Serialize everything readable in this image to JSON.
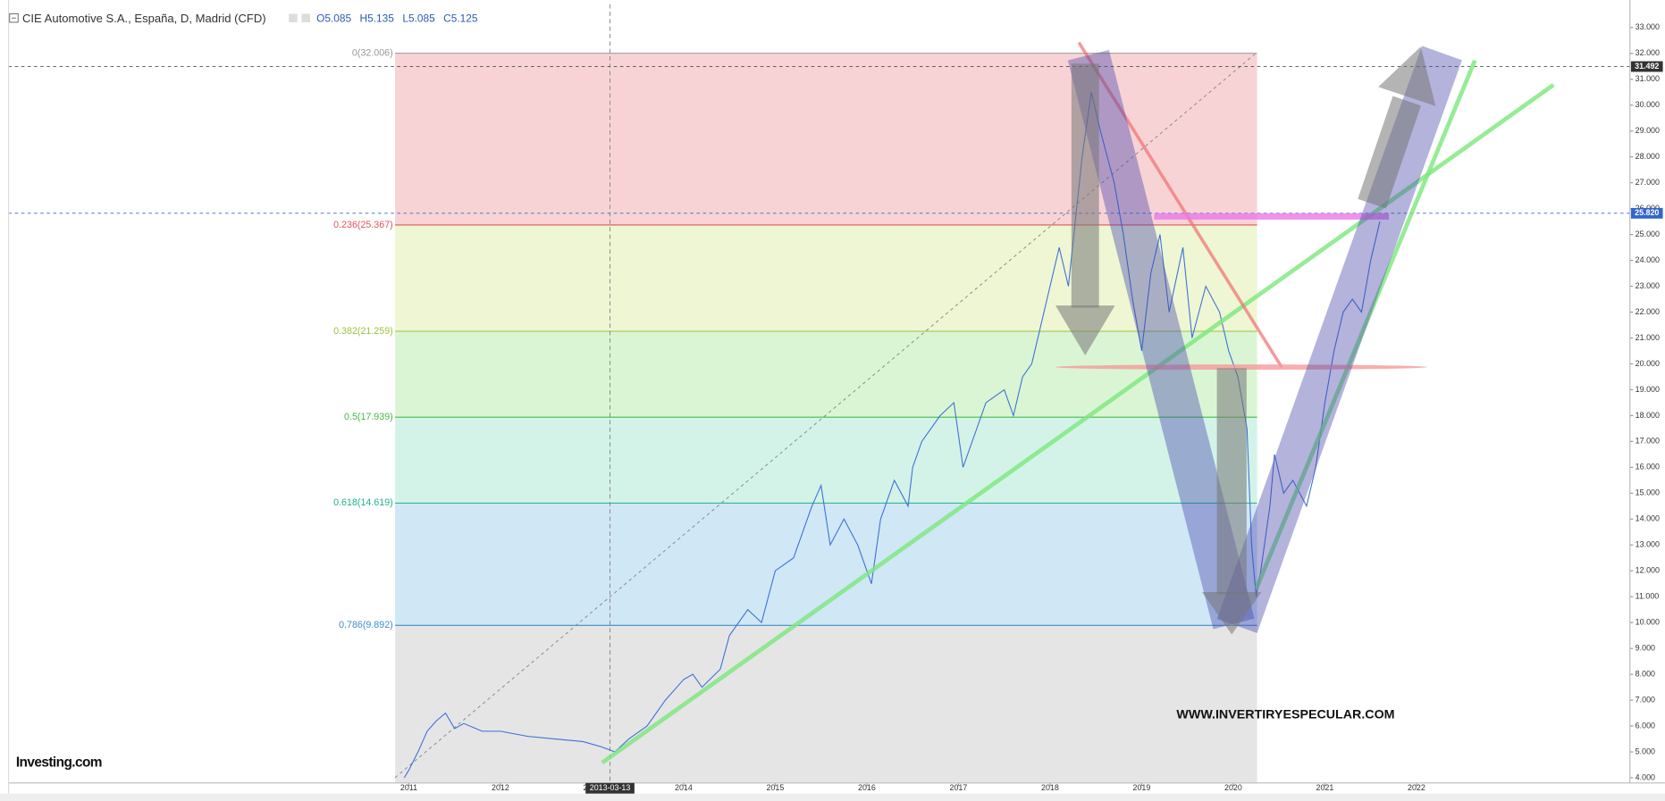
{
  "chart_data": {
    "type": "line",
    "title": "CIE Automotive S.A., España, D, Madrid (CFD)",
    "ohlc": [
      {
        "value": 5.085,
        "label": "O5.085"
      },
      {
        "value": 5.135,
        "label": "H5.135"
      },
      {
        "value": 5.085,
        "label": "L5.085"
      },
      {
        "value": 5.125,
        "label": "C5.125"
      }
    ],
    "x": [
      2010.95,
      2011.0,
      2011.1,
      2011.2,
      2011.3,
      2011.4,
      2011.5,
      2011.6,
      2011.8,
      2012.0,
      2012.3,
      2012.6,
      2012.9,
      2013.1,
      2013.25,
      2013.4,
      2013.6,
      2013.8,
      2014.0,
      2014.1,
      2014.2,
      2014.4,
      2014.5,
      2014.7,
      2014.85,
      2015.0,
      2015.2,
      2015.4,
      2015.5,
      2015.6,
      2015.75,
      2015.9,
      2016.05,
      2016.15,
      2016.3,
      2016.45,
      2016.5,
      2016.6,
      2016.8,
      2016.95,
      2017.05,
      2017.15,
      2017.3,
      2017.5,
      2017.6,
      2017.7,
      2017.8,
      2017.9,
      2018.0,
      2018.1,
      2018.2,
      2018.35,
      2018.45,
      2018.55,
      2018.7,
      2018.8,
      2018.9,
      2019.0,
      2019.1,
      2019.2,
      2019.3,
      2019.45,
      2019.55,
      2019.7,
      2019.85,
      2019.95,
      2020.05,
      2020.15,
      2020.2,
      2020.25,
      2020.3,
      2020.4,
      2020.45,
      2020.55,
      2020.65,
      2020.8,
      2020.9,
      2021.0,
      2021.1,
      2021.2,
      2021.3,
      2021.4,
      2021.5,
      2021.6
    ],
    "series": [
      {
        "color": "#3c6fd6",
        "values": [
          4.0,
          4.3,
          5.0,
          5.8,
          6.2,
          6.5,
          5.9,
          6.1,
          5.8,
          5.8,
          5.6,
          5.5,
          5.4,
          5.2,
          5.0,
          5.5,
          6.0,
          7.0,
          7.8,
          8.0,
          7.5,
          8.2,
          9.5,
          10.5,
          10.0,
          12.0,
          12.5,
          14.5,
          15.3,
          13.0,
          14.0,
          13.0,
          11.5,
          14.0,
          15.5,
          14.5,
          16.0,
          17.0,
          18.0,
          18.5,
          16.0,
          17.0,
          18.5,
          19.0,
          18.0,
          19.5,
          20.0,
          21.5,
          23.0,
          24.5,
          23.0,
          28.0,
          30.5,
          29.0,
          27.0,
          25.0,
          22.5,
          20.5,
          23.5,
          25.0,
          22.0,
          24.5,
          21.0,
          23.0,
          22.0,
          20.5,
          19.5,
          17.5,
          13.0,
          11.0,
          12.0,
          14.5,
          16.5,
          15.0,
          15.5,
          14.5,
          16.0,
          18.5,
          20.5,
          22.0,
          22.5,
          22.0,
          24.0,
          25.5
        ]
      }
    ],
    "xlim": [
      2006.63,
      2024.33
    ],
    "xticks": [
      2011,
      2012,
      2013,
      2014,
      2015,
      2016,
      2017,
      2018,
      2019,
      2020,
      2021,
      2022
    ],
    "ylim": [
      3.8,
      33.9
    ],
    "yticks": [
      {
        "value": 4,
        "label": "4.000"
      },
      {
        "value": 5,
        "label": "5.000"
      },
      {
        "value": 6,
        "label": "6.000"
      },
      {
        "value": 7,
        "label": "7.000"
      },
      {
        "value": 8,
        "label": "8.000"
      },
      {
        "value": 9,
        "label": "9.000"
      },
      {
        "value": 10,
        "label": "10.000"
      },
      {
        "value": 11,
        "label": "11.000"
      },
      {
        "value": 12,
        "label": "12.000"
      },
      {
        "value": 13,
        "label": "13.000"
      },
      {
        "value": 14,
        "label": "14.000"
      },
      {
        "value": 15,
        "label": "15.000"
      },
      {
        "value": 16,
        "label": "16.000"
      },
      {
        "value": 17,
        "label": "17.000"
      },
      {
        "value": 18,
        "label": "18.000"
      },
      {
        "value": 19,
        "label": "19.000"
      },
      {
        "value": 20,
        "label": "20.000"
      },
      {
        "value": 21,
        "label": "21.000"
      },
      {
        "value": 22,
        "label": "22.000"
      },
      {
        "value": 23,
        "label": "23.000"
      },
      {
        "value": 24,
        "label": "24.000"
      },
      {
        "value": 25,
        "label": "25.000"
      },
      {
        "value": 26,
        "label": "26.000"
      },
      {
        "value": 27,
        "label": "27.000"
      },
      {
        "value": 28,
        "label": "28.000"
      },
      {
        "value": 29,
        "label": "29.000"
      },
      {
        "value": 30,
        "label": "30.000"
      },
      {
        "value": 31,
        "label": "31.000"
      },
      {
        "value": 32,
        "label": "32.000"
      },
      {
        "value": 33,
        "label": "33.000"
      }
    ],
    "grid": false,
    "fib_range": [
      2010.85,
      2020.26
    ],
    "fib_levels": [
      {
        "label": "0(32.006)",
        "value": 32.006,
        "color": "#999999",
        "fill": "rgba(232,110,120,0.3)"
      },
      {
        "label": "0.236(25.367)",
        "value": 25.367,
        "color": "#e05555",
        "fill": "rgba(205,230,130,0.35)"
      },
      {
        "label": "0.382(21.259)",
        "value": 21.259,
        "color": "#9cc23a",
        "fill": "rgba(140,225,120,0.32)"
      },
      {
        "label": "0.5(17.939)",
        "value": 17.939,
        "color": "#44bb44",
        "fill": "rgba(110,215,180,0.3)"
      },
      {
        "label": "0.618(14.619)",
        "value": 14.619,
        "color": "#22b08a",
        "fill": "rgba(100,175,225,0.3)"
      },
      {
        "label": "0.786(9.892)",
        "value": 9.892,
        "color": "#3d8fc8",
        "fill": "rgba(160,160,160,0.28)"
      }
    ],
    "price_lines": [
      {
        "value": 31.492,
        "label": "31.492",
        "color": "#333333"
      },
      {
        "value": 25.82,
        "label": "25.820",
        "color": "#3366cc"
      }
    ],
    "crosshair": {
      "value": 2013.196,
      "label": "2013-03-13"
    },
    "watermark": "WWW.INVERTIRYESPECULAR.COM",
    "logo": "Investing.com"
  }
}
